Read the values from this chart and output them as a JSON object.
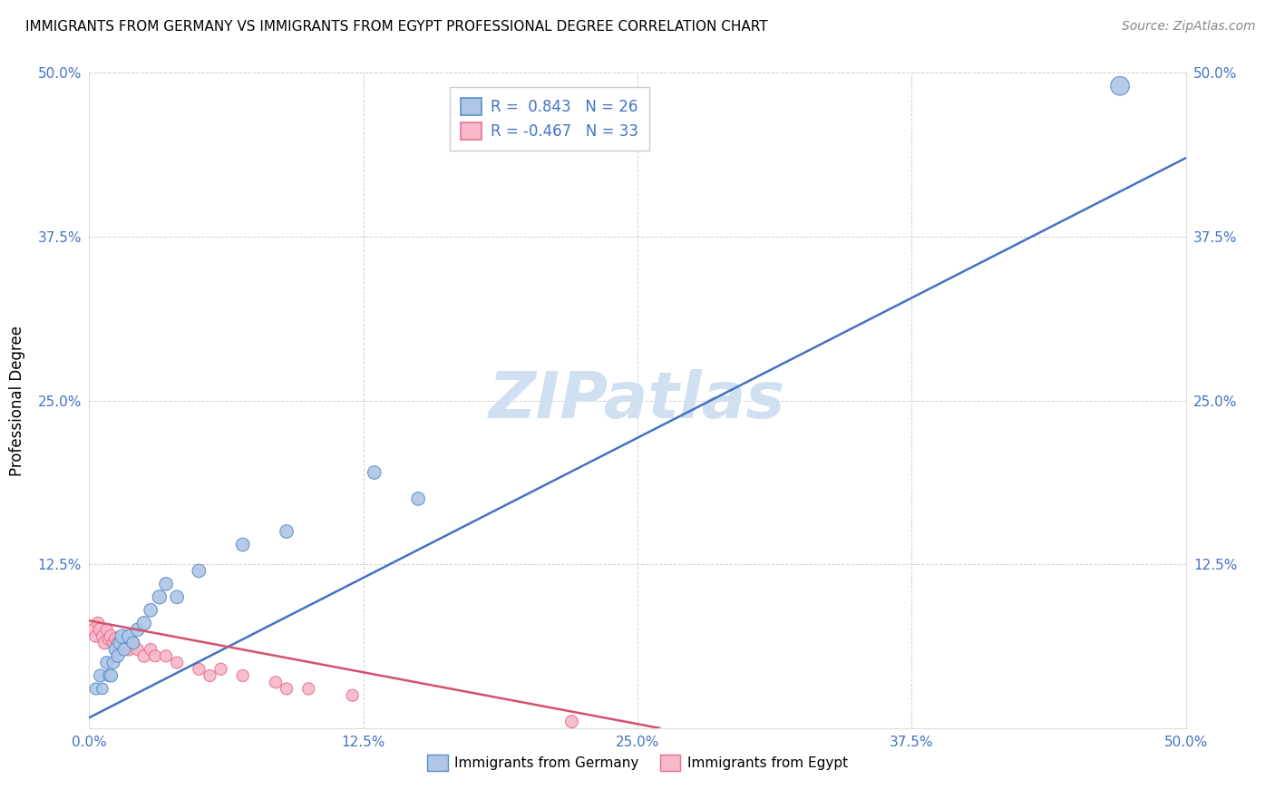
{
  "title": "IMMIGRANTS FROM GERMANY VS IMMIGRANTS FROM EGYPT PROFESSIONAL DEGREE CORRELATION CHART",
  "source": "Source: ZipAtlas.com",
  "ylabel": "Professional Degree",
  "xlabel": "",
  "xlim": [
    0.0,
    0.5
  ],
  "ylim": [
    0.0,
    0.5
  ],
  "xtick_vals": [
    0.0,
    0.125,
    0.25,
    0.375,
    0.5
  ],
  "xtick_labels": [
    "0.0%",
    "12.5%",
    "25.0%",
    "37.5%",
    "50.0%"
  ],
  "ytick_vals": [
    0.0,
    0.125,
    0.25,
    0.375,
    0.5
  ],
  "ytick_labels": [
    "",
    "12.5%",
    "25.0%",
    "37.5%",
    "50.0%"
  ],
  "right_ytick_labels": [
    "",
    "12.5%",
    "25.0%",
    "37.5%",
    "50.0%"
  ],
  "germany_color": "#aec6e8",
  "egypt_color": "#f7b8c8",
  "germany_edge_color": "#5b8ec4",
  "egypt_edge_color": "#e87090",
  "germany_line_color": "#4472c4",
  "egypt_line_color": "#d45070",
  "tick_color": "#4472c4",
  "R_germany": 0.843,
  "N_germany": 26,
  "R_egypt": -0.467,
  "N_egypt": 33,
  "watermark": "ZIPatlas",
  "watermark_color": "#d0e0f0",
  "germany_line_x0": 0.0,
  "germany_line_y0": 0.008,
  "germany_line_x1": 0.5,
  "germany_line_y1": 0.435,
  "egypt_line_x0": 0.0,
  "egypt_line_y0": 0.082,
  "egypt_line_x1": 0.26,
  "egypt_line_y1": 0.0,
  "germany_scatter_x": [
    0.003,
    0.005,
    0.006,
    0.008,
    0.009,
    0.01,
    0.011,
    0.012,
    0.013,
    0.014,
    0.015,
    0.016,
    0.018,
    0.02,
    0.022,
    0.025,
    0.028,
    0.032,
    0.035,
    0.04,
    0.05,
    0.07,
    0.09,
    0.13,
    0.15,
    0.47
  ],
  "germany_scatter_y": [
    0.03,
    0.04,
    0.03,
    0.05,
    0.04,
    0.04,
    0.05,
    0.06,
    0.055,
    0.065,
    0.07,
    0.06,
    0.07,
    0.065,
    0.075,
    0.08,
    0.09,
    0.1,
    0.11,
    0.1,
    0.12,
    0.14,
    0.15,
    0.195,
    0.175,
    0.49
  ],
  "germany_scatter_sizes": [
    90,
    100,
    80,
    100,
    90,
    100,
    100,
    110,
    100,
    110,
    120,
    100,
    110,
    100,
    110,
    120,
    110,
    120,
    110,
    110,
    110,
    110,
    110,
    110,
    110,
    220
  ],
  "egypt_scatter_x": [
    0.002,
    0.003,
    0.004,
    0.005,
    0.006,
    0.007,
    0.008,
    0.009,
    0.01,
    0.011,
    0.012,
    0.013,
    0.014,
    0.015,
    0.016,
    0.017,
    0.018,
    0.02,
    0.022,
    0.025,
    0.028,
    0.03,
    0.035,
    0.04,
    0.05,
    0.055,
    0.06,
    0.07,
    0.085,
    0.09,
    0.1,
    0.12,
    0.22
  ],
  "egypt_scatter_y": [
    0.075,
    0.07,
    0.08,
    0.075,
    0.07,
    0.065,
    0.075,
    0.068,
    0.07,
    0.065,
    0.068,
    0.065,
    0.06,
    0.065,
    0.06,
    0.065,
    0.06,
    0.065,
    0.06,
    0.055,
    0.06,
    0.055,
    0.055,
    0.05,
    0.045,
    0.04,
    0.045,
    0.04,
    0.035,
    0.03,
    0.03,
    0.025,
    0.005
  ],
  "egypt_scatter_sizes": [
    110,
    90,
    100,
    110,
    90,
    100,
    90,
    100,
    110,
    90,
    100,
    90,
    100,
    110,
    90,
    90,
    100,
    100,
    90,
    100,
    90,
    90,
    90,
    90,
    90,
    90,
    90,
    90,
    90,
    90,
    90,
    90,
    100
  ]
}
